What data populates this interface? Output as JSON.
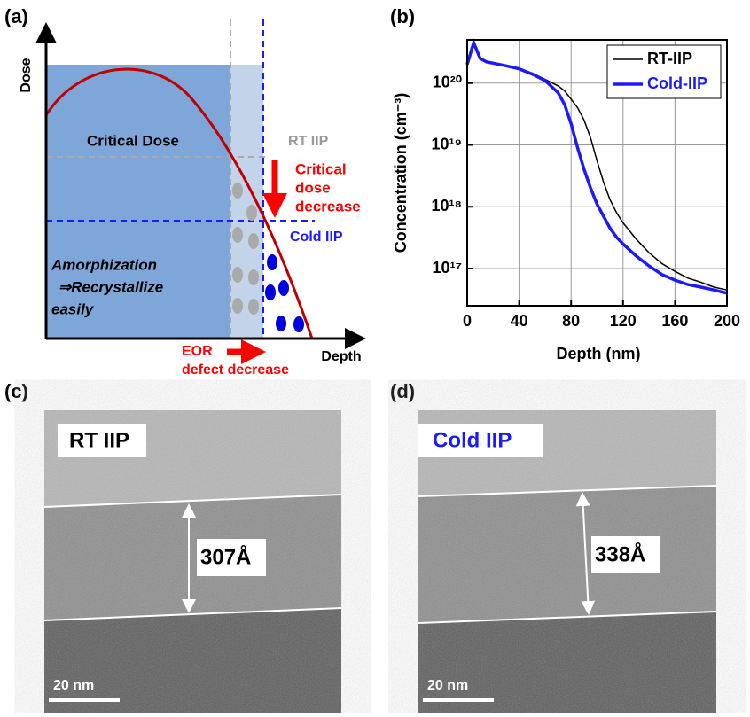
{
  "panel_a": {
    "label": "(a)",
    "y_axis": "Dose",
    "x_axis": "Depth",
    "critical_dose": "Critical Dose",
    "rt_iip": "RT IIP",
    "critical_note": [
      "Critical",
      "dose",
      "decrease"
    ],
    "cold_iip": "Cold IIP",
    "amorph": [
      "Amorphization",
      "⇒Recrystallize",
      "easily"
    ],
    "eor": [
      "EOR",
      "defect decrease"
    ]
  },
  "chart_data": {
    "type": "line",
    "label": "(b)",
    "x_label": "Depth (nm)",
    "y_label": "Concentration (cm⁻³)",
    "xlim": [
      0,
      200
    ],
    "xticks": [
      0,
      40,
      80,
      120,
      160,
      200
    ],
    "log_y": true,
    "grid": true,
    "legend": "top-right",
    "ylim": [
      2.5e+16,
      5e+20
    ],
    "yticks": [
      {
        "value": 1e+17,
        "label": "10¹⁷"
      },
      {
        "value": 1e+18,
        "label": "10¹⁸"
      },
      {
        "value": 1e+19,
        "label": "10¹⁹"
      },
      {
        "value": 1e+20,
        "label": "10²⁰"
      }
    ],
    "x": [
      0,
      5,
      10,
      15,
      20,
      30,
      40,
      50,
      60,
      70,
      75,
      80,
      85,
      90,
      95,
      100,
      105,
      110,
      115,
      120,
      130,
      140,
      150,
      160,
      170,
      180,
      190,
      200
    ],
    "series": [
      {
        "name": "RT-IIP",
        "color": "#000000",
        "width": 1.5,
        "values": [
          2e+20,
          4.5e+20,
          2.5e+20,
          2.2e+20,
          2.1e+20,
          1.9e+20,
          1.7e+20,
          1.45e+20,
          1.15e+20,
          9e+19,
          7.5e+19,
          5.5e+19,
          4e+19,
          2.5e+19,
          1.3e+19,
          5.5e+18,
          2.5e+18,
          1.3e+18,
          8e+17,
          5.5e+17,
          3e+17,
          1.8e+17,
          1.2e+17,
          9e+16,
          7e+16,
          6e+16,
          5e+16,
          4.5e+16
        ]
      },
      {
        "name": "Cold-IIP",
        "color": "#1a1aff",
        "width": 3.5,
        "values": [
          2e+20,
          4.5e+20,
          2.5e+20,
          2.2e+20,
          2.1e+20,
          1.9e+20,
          1.7e+20,
          1.4e+20,
          1.1e+20,
          7e+19,
          4.5e+19,
          2.2e+19,
          9e+18,
          4e+18,
          2e+18,
          1.1e+18,
          7e+17,
          4.5e+17,
          3.2e+17,
          2.5e+17,
          1.6e+17,
          1.1e+17,
          8e+16,
          6.5e+16,
          5.5e+16,
          5e+16,
          4.5e+16,
          4e+16
        ]
      }
    ]
  },
  "panel_c": {
    "label": "(c)",
    "tag": "RT IIP",
    "thickness": "307Å",
    "scale": "20 nm"
  },
  "panel_d": {
    "label": "(d)",
    "tag": "Cold IIP",
    "thickness": "338Å",
    "scale": "20 nm"
  }
}
